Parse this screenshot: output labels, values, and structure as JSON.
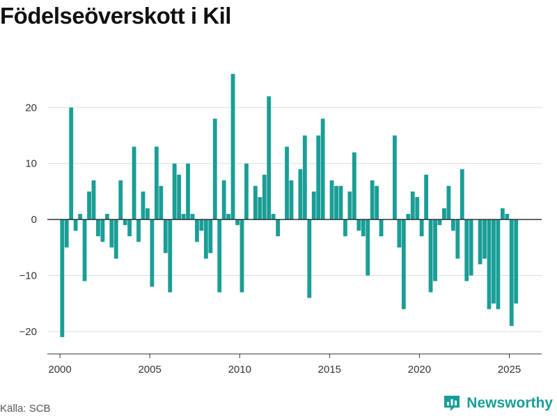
{
  "title": "Födelseöverskott i Kil",
  "source": "Källa: SCB",
  "brand": {
    "name": "Newsworthy",
    "color": "#179e96"
  },
  "chart_data": {
    "type": "bar",
    "title": "Födelseöverskott i Kil",
    "xlabel": "",
    "ylabel": "",
    "color": "#1a9e96",
    "xlim": [
      1999.3,
      2026.8
    ],
    "ylim": [
      -24,
      28
    ],
    "yticks": [
      -20,
      -10,
      0,
      10,
      20
    ],
    "xticks": [
      2000,
      2005,
      2010,
      2015,
      2020,
      2025
    ],
    "grid": true,
    "legend": "none",
    "x": [
      2000.125,
      2000.375,
      2000.625,
      2000.875,
      2001.125,
      2001.375,
      2001.625,
      2001.875,
      2002.125,
      2002.375,
      2002.625,
      2002.875,
      2003.125,
      2003.375,
      2003.625,
      2003.875,
      2004.125,
      2004.375,
      2004.625,
      2004.875,
      2005.125,
      2005.375,
      2005.625,
      2005.875,
      2006.125,
      2006.375,
      2006.625,
      2006.875,
      2007.125,
      2007.375,
      2007.625,
      2007.875,
      2008.125,
      2008.375,
      2008.625,
      2008.875,
      2009.125,
      2009.375,
      2009.625,
      2009.875,
      2010.125,
      2010.375,
      2010.625,
      2010.875,
      2011.125,
      2011.375,
      2011.625,
      2011.875,
      2012.125,
      2012.375,
      2012.625,
      2012.875,
      2013.125,
      2013.375,
      2013.625,
      2013.875,
      2014.125,
      2014.375,
      2014.625,
      2014.875,
      2015.125,
      2015.375,
      2015.625,
      2015.875,
      2016.125,
      2016.375,
      2016.625,
      2016.875,
      2017.125,
      2017.375,
      2017.625,
      2017.875,
      2018.125,
      2018.375,
      2018.625,
      2018.875,
      2019.125,
      2019.375,
      2019.625,
      2019.875,
      2020.125,
      2020.375,
      2020.625,
      2020.875,
      2021.125,
      2021.375,
      2021.625,
      2021.875,
      2022.125,
      2022.375,
      2022.625,
      2022.875,
      2023.125,
      2023.375,
      2023.625,
      2023.875,
      2024.125,
      2024.375,
      2024.625,
      2024.875,
      2025.125,
      2025.375
    ],
    "values": [
      -21,
      -5,
      20,
      -2,
      1,
      -11,
      5,
      7,
      -3,
      -4,
      1,
      -5,
      -7,
      7,
      -1,
      -3,
      13,
      -4,
      5,
      2,
      -12,
      13,
      6,
      -6,
      -13,
      10,
      8,
      1,
      10,
      1,
      -4,
      -2,
      -7,
      -6,
      18,
      -13,
      7,
      1,
      26,
      -1,
      -13,
      10,
      0,
      6,
      4,
      8,
      22,
      1,
      -3,
      0,
      13,
      7,
      0,
      9,
      15,
      -14,
      5,
      15,
      18,
      0,
      7,
      6,
      6,
      -3,
      5,
      12,
      -2,
      -3,
      -10,
      7,
      6,
      -3,
      0,
      0,
      15,
      -5,
      -16,
      1,
      5,
      4,
      -3,
      8,
      -13,
      -11,
      -1,
      2,
      6,
      -2,
      -7,
      9,
      -11,
      -10,
      0,
      -8,
      -7,
      -16,
      -15,
      -16,
      2,
      1,
      -19,
      -15
    ]
  }
}
